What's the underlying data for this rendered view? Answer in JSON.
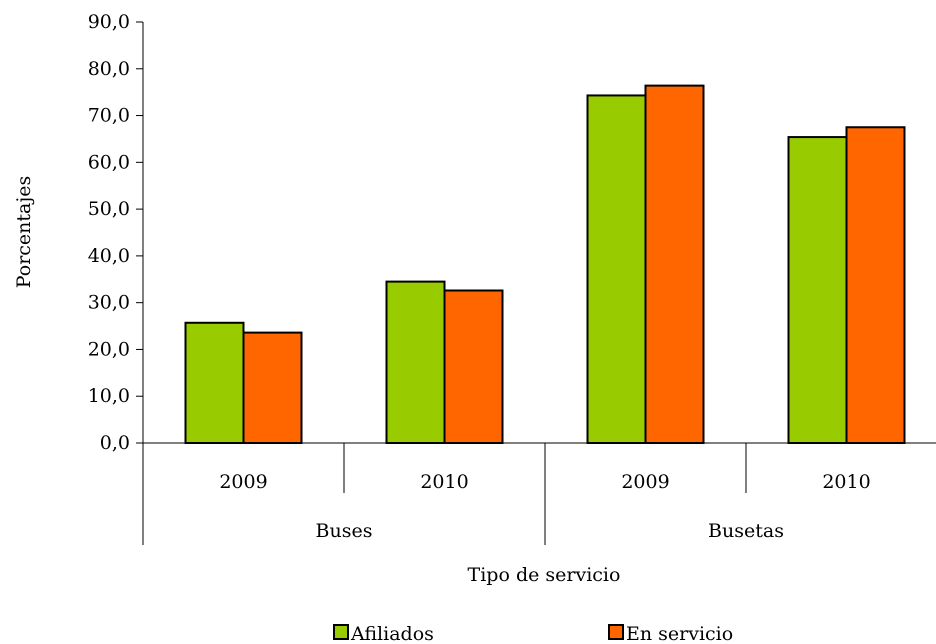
{
  "chart_data": {
    "type": "bar",
    "groups": [
      {
        "name": "Buses",
        "categories": [
          "2009",
          "2010"
        ]
      },
      {
        "name": "Busetas",
        "categories": [
          "2009",
          "2010"
        ]
      }
    ],
    "categories": [
      "2009",
      "2010",
      "2009",
      "2010"
    ],
    "series": [
      {
        "name": "Afiliados",
        "color": "#99cc00",
        "values": [
          25.7,
          34.5,
          74.3,
          65.4
        ]
      },
      {
        "name": "En servicio",
        "color": "#ff6600",
        "values": [
          23.6,
          32.6,
          76.4,
          67.5
        ]
      }
    ],
    "xlabel": "Tipo de servicio",
    "ylabel": "Porcentajes",
    "ylim": [
      0,
      90
    ],
    "yticks": [
      "0,0",
      "10,0",
      "20,0",
      "30,0",
      "40,0",
      "50,0",
      "60,0",
      "70,0",
      "80,0",
      "90,0"
    ],
    "grid": false,
    "legend_position": "bottom"
  }
}
